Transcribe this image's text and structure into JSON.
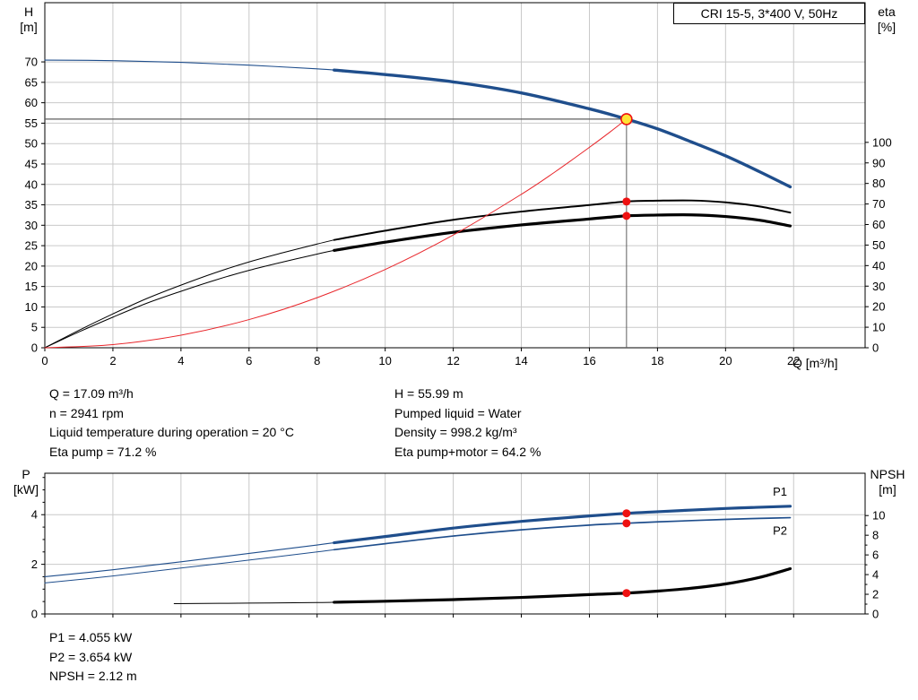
{
  "colors": {
    "blue": "#1f4e8c",
    "red": "#e8252a",
    "black": "#000000",
    "yellow": "#ffe234",
    "grid": "#c9c9c9",
    "ref": "#5f5f5f",
    "marker": "#ee1111"
  },
  "top_info": {
    "col1": [
      "Q = 17.09 m³/h",
      "n = 2941 rpm",
      "Liquid temperature during operation = 20 °C",
      "Eta pump = 71.2 %"
    ],
    "col2": [
      "H = 55.99 m",
      "Pumped liquid = Water",
      "Density = 998.2 kg/m³",
      "Eta pump+motor = 64.2 %"
    ]
  },
  "bottom_info": [
    "P1 = 4.055 kW",
    "P2 = 3.654 kW",
    "NPSH = 2.12 m"
  ],
  "chart_data": [
    {
      "id": "qh",
      "type": "line",
      "title": "CRI 15-5, 3*400 V, 50Hz",
      "x_axis": {
        "label": "Q [m³/h]",
        "min": 0,
        "max": 24.1,
        "ticks": [
          0,
          2,
          4,
          6,
          8,
          10,
          12,
          14,
          16,
          18,
          20,
          22
        ],
        "show_labels": true
      },
      "y_left": {
        "name": "H",
        "unit": "[m]",
        "min": 0,
        "max": 84.5,
        "ticks": [
          0,
          5,
          10,
          15,
          20,
          25,
          30,
          35,
          40,
          45,
          50,
          55,
          60,
          65,
          70
        ],
        "grid": true
      },
      "y_right": {
        "name": "eta",
        "unit": "[%]",
        "min": 0,
        "max": 168,
        "ticks": [
          0,
          10,
          20,
          30,
          40,
          50,
          60,
          70,
          80,
          90,
          100
        ]
      },
      "series": [
        {
          "name": "head-curve",
          "axis": "left",
          "color": "blue",
          "split_at": 8.5,
          "width_thin": 1.1,
          "width_thick": 3.4,
          "points": [
            [
              0,
              70.45
            ],
            [
              2,
              70.3
            ],
            [
              4,
              69.9
            ],
            [
              6,
              69.2
            ],
            [
              8,
              68.3
            ],
            [
              8.5,
              68.0
            ],
            [
              10,
              66.9
            ],
            [
              12,
              65.1
            ],
            [
              14,
              62.4
            ],
            [
              16,
              58.5
            ],
            [
              17.09,
              55.99
            ],
            [
              18,
              53.6
            ],
            [
              19,
              50.4
            ],
            [
              20,
              47.0
            ],
            [
              21,
              43.1
            ],
            [
              21.9,
              39.4
            ]
          ]
        },
        {
          "name": "eta-pump-curve",
          "axis": "right",
          "color": "black",
          "split_at": 8.5,
          "width_thin": 1,
          "width_thick": 2,
          "points": [
            [
              0,
              0
            ],
            [
              1,
              8.5
            ],
            [
              2,
              16.5
            ],
            [
              3,
              24
            ],
            [
              4,
              30.5
            ],
            [
              5,
              36.5
            ],
            [
              6,
              41.8
            ],
            [
              7,
              46.3
            ],
            [
              8,
              50.5
            ],
            [
              8.5,
              52.5
            ],
            [
              10,
              57
            ],
            [
              12,
              62.3
            ],
            [
              14,
              66.3
            ],
            [
              16,
              69.5
            ],
            [
              17.09,
              71.2
            ],
            [
              18,
              71.6
            ],
            [
              19,
              71.7
            ],
            [
              20,
              70.8
            ],
            [
              21,
              68.8
            ],
            [
              21.9,
              65.8
            ]
          ]
        },
        {
          "name": "eta-pump-motor-curve",
          "axis": "right",
          "color": "black",
          "split_at": 8.5,
          "width_thin": 1,
          "width_thick": 3.2,
          "points": [
            [
              0,
              0
            ],
            [
              1,
              7.7
            ],
            [
              2,
              14.9
            ],
            [
              3,
              21.7
            ],
            [
              4,
              27.5
            ],
            [
              5,
              32.9
            ],
            [
              6,
              37.7
            ],
            [
              7,
              41.8
            ],
            [
              8,
              45.6
            ],
            [
              8.5,
              47.4
            ],
            [
              10,
              51.4
            ],
            [
              12,
              56.2
            ],
            [
              14,
              59.8
            ],
            [
              16,
              62.7
            ],
            [
              17.09,
              64.2
            ],
            [
              18,
              64.6
            ],
            [
              19,
              64.7
            ],
            [
              20,
              63.9
            ],
            [
              21,
              62.1
            ],
            [
              21.9,
              59.3
            ]
          ]
        },
        {
          "name": "system-curve",
          "axis": "left",
          "color": "red",
          "width": 1,
          "points": [
            [
              0,
              0
            ],
            [
              2,
              0.77
            ],
            [
              4,
              3.07
            ],
            [
              6,
              6.9
            ],
            [
              8,
              12.27
            ],
            [
              10,
              19.17
            ],
            [
              12,
              27.61
            ],
            [
              14,
              37.58
            ],
            [
              15,
              43.13
            ],
            [
              16,
              49.08
            ],
            [
              16.6,
              52.8
            ],
            [
              17.09,
              55.99
            ]
          ]
        }
      ],
      "markers": [
        {
          "q": 17.09,
          "axis": "right",
          "v": 71.2
        },
        {
          "q": 17.09,
          "axis": "right",
          "v": 64.2
        }
      ],
      "operating_point": {
        "q": 17.09,
        "h": 55.99
      }
    },
    {
      "id": "power",
      "type": "line",
      "x_axis": {
        "label": "",
        "min": 0,
        "max": 24.1,
        "ticks": [
          0,
          2,
          4,
          6,
          8,
          10,
          12,
          14,
          16,
          18,
          20,
          22
        ],
        "show_labels": false
      },
      "y_left": {
        "name": "P",
        "unit": "[kW]",
        "min": 0,
        "max": 5.67,
        "ticks": [
          0,
          2,
          4
        ],
        "minor_step": 0.5,
        "grid": true
      },
      "y_right": {
        "name": "NPSH",
        "unit": "[m]",
        "min": 0,
        "max": 14.3,
        "ticks": [
          0,
          2,
          4,
          6,
          8,
          10
        ],
        "minor_step": 1
      },
      "series": [
        {
          "name": "p1-curve",
          "axis": "left",
          "color": "blue",
          "split_at": 8.5,
          "width_thin": 1.1,
          "width_thick": 3.2,
          "points": [
            [
              0,
              1.5
            ],
            [
              2,
              1.78
            ],
            [
              4,
              2.1
            ],
            [
              6,
              2.44
            ],
            [
              8,
              2.78
            ],
            [
              8.5,
              2.87
            ],
            [
              10,
              3.12
            ],
            [
              12,
              3.46
            ],
            [
              14,
              3.73
            ],
            [
              16,
              3.95
            ],
            [
              17.09,
              4.055
            ],
            [
              18,
              4.12
            ],
            [
              20,
              4.25
            ],
            [
              21,
              4.3
            ],
            [
              21.9,
              4.34
            ]
          ]
        },
        {
          "name": "p2-curve",
          "axis": "left",
          "color": "blue",
          "split_at": 8.5,
          "width_thin": 1,
          "width_thick": 1.7,
          "points": [
            [
              0,
              1.25
            ],
            [
              2,
              1.53
            ],
            [
              4,
              1.85
            ],
            [
              6,
              2.17
            ],
            [
              8,
              2.5
            ],
            [
              8.5,
              2.59
            ],
            [
              10,
              2.83
            ],
            [
              12,
              3.14
            ],
            [
              14,
              3.39
            ],
            [
              16,
              3.58
            ],
            [
              17.09,
              3.654
            ],
            [
              18,
              3.71
            ],
            [
              20,
              3.81
            ],
            [
              21,
              3.85
            ],
            [
              21.9,
              3.88
            ]
          ]
        },
        {
          "name": "npsh-curve",
          "axis": "right",
          "color": "black",
          "split_at": 8.5,
          "width_thin": 1,
          "width_thick": 3.2,
          "points": [
            [
              3.8,
              1.05
            ],
            [
              6,
              1.1
            ],
            [
              8,
              1.16
            ],
            [
              8.5,
              1.19
            ],
            [
              10,
              1.29
            ],
            [
              12,
              1.46
            ],
            [
              14,
              1.68
            ],
            [
              16,
              1.97
            ],
            [
              17.09,
              2.12
            ],
            [
              18,
              2.32
            ],
            [
              19,
              2.62
            ],
            [
              20,
              3.05
            ],
            [
              21,
              3.72
            ],
            [
              21.9,
              4.6
            ]
          ]
        }
      ],
      "point_labels": [
        {
          "text": "P1",
          "q": 21.6,
          "v": 4.95,
          "color": "blue"
        },
        {
          "text": "P2",
          "q": 21.6,
          "v": 3.38,
          "color": "blue"
        }
      ],
      "markers": [
        {
          "q": 17.09,
          "axis": "left",
          "v": 4.055
        },
        {
          "q": 17.09,
          "axis": "left",
          "v": 3.654
        },
        {
          "q": 17.09,
          "axis": "right",
          "v": 2.12
        }
      ]
    }
  ]
}
